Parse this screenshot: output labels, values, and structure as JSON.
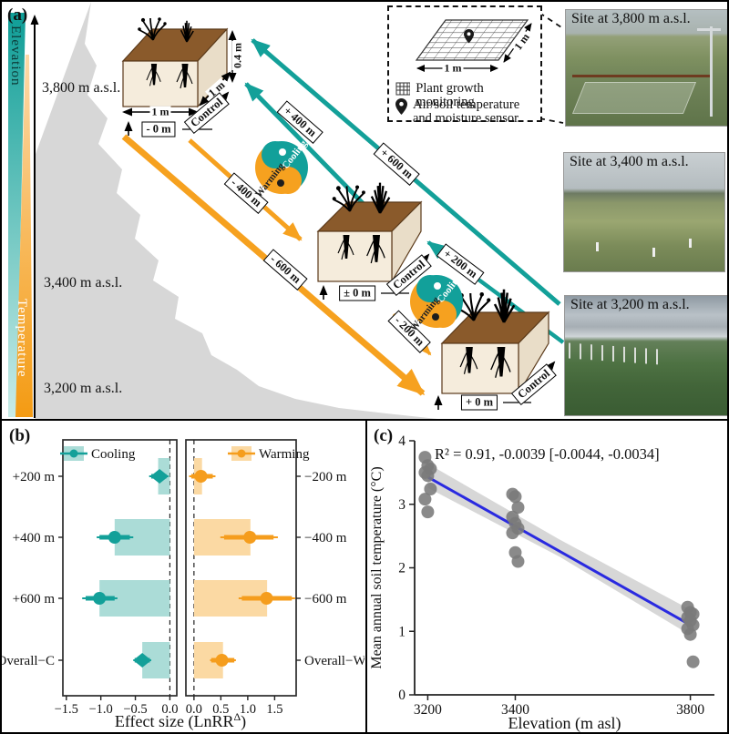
{
  "colors": {
    "teal": "#13a099",
    "teal_light": "#abdcd7",
    "orange": "#f6a11f",
    "orange_light": "#fbd9a3",
    "blue_line": "#2a2ae0",
    "gray_point": "#7a7a7a",
    "ci_band": "#c9c9c9",
    "mountain": "#d7d7d7",
    "soil_top": "#8a5a2b",
    "soil_face": "#f5ecdc"
  },
  "panels": {
    "a": "(a)",
    "b": "(b)",
    "c": "(c)"
  },
  "panel_a": {
    "elevation_bar_label": "Elevation",
    "temperature_bar_label": "Temperature",
    "elevation_labels": [
      "3,800 m a.s.l.",
      "3,400 m a.s.l.",
      "3,200 m a.s.l."
    ],
    "monolith_top": {
      "width_label": "1 m",
      "depth_label": "1 m",
      "height_label": "0.4 m",
      "offset_label": "- 0 m",
      "control_label": "Control"
    },
    "monolith_mid": {
      "offset_label": "± 0 m",
      "control_label": "Control"
    },
    "monolith_bottom": {
      "offset_label": "+ 0 m",
      "control_label": "Control"
    },
    "cooling_arrow_labels": {
      "plus200": "+ 200 m",
      "plus400": "+ 400 m",
      "plus600": "+ 600 m"
    },
    "warming_arrow_labels": {
      "minus200": "- 200 m",
      "minus400": "- 400 m",
      "minus600": "- 600 m"
    },
    "yinyang": {
      "cooling": "Cooling",
      "warming": "Warming"
    },
    "legend": {
      "quadrat_width_label": "1 m",
      "quadrat_depth_label": "1 m",
      "item1": "Plant growth monitoring",
      "item2": "Air/soil temperature and moisture sensor"
    },
    "photos": {
      "top": "Site at 3,800 m a.s.l.",
      "middle": "Site at 3,400 m a.s.l.",
      "bottom": "Site at 3,200 m a.s.l."
    }
  },
  "chart_data": [
    {
      "id": "effect-size-forest",
      "type": "bar",
      "xlabel_main": "Effect size (LnRR",
      "xlabel_sup": "Δ",
      "xlabel_end": ")",
      "panels": [
        {
          "name": "Cooling",
          "marker_color": "#13a099",
          "bar_fill": "#abdcd7",
          "xlim": [
            -1.55,
            0.1
          ],
          "xticks": [
            {
              "v": -1.5,
              "label": "−1.5"
            },
            {
              "v": -1.0,
              "label": "−1.0"
            },
            {
              "v": -0.5,
              "label": "−0.5"
            },
            {
              "v": 0.0,
              "label": "0.0"
            }
          ],
          "zero_dashed_line": true,
          "label_side": "left",
          "rows": [
            {
              "label": "+200 m",
              "bar": -0.17,
              "point": -0.15,
              "ci_thick": [
                -0.27,
                -0.05
              ],
              "ci_thin": [
                -0.3,
                -0.02
              ],
              "marker": "diamond"
            },
            {
              "label": "+400 m",
              "bar": -0.8,
              "point": -0.8,
              "ci_thick": [
                -1.02,
                -0.58
              ],
              "ci_thin": [
                -1.06,
                -0.53
              ],
              "marker": "circle"
            },
            {
              "label": "+600 m",
              "bar": -1.02,
              "point": -1.02,
              "ci_thick": [
                -1.22,
                -0.8
              ],
              "ci_thin": [
                -1.27,
                -0.76
              ],
              "marker": "circle"
            },
            {
              "label": "Overall−C",
              "bar": -0.4,
              "point": -0.4,
              "ci_thick": [
                -0.51,
                -0.29
              ],
              "ci_thin": [
                -0.53,
                -0.27
              ],
              "marker": "diamond"
            }
          ]
        },
        {
          "name": "Warming",
          "marker_color": "#f59d1d",
          "bar_fill": "#fbd9a3",
          "xlim": [
            -0.15,
            1.9
          ],
          "xticks": [
            {
              "v": 0.0,
              "label": "0.0"
            },
            {
              "v": 0.5,
              "label": "0.5"
            },
            {
              "v": 1.0,
              "label": "1.0"
            },
            {
              "v": 1.5,
              "label": "1.5"
            }
          ],
          "zero_dashed_line": true,
          "label_side": "right",
          "rows": [
            {
              "label": "−200 m",
              "bar": 0.15,
              "point": 0.13,
              "ci_thick": [
                -0.05,
                0.35
              ],
              "ci_thin": [
                -0.09,
                0.4
              ],
              "marker": "circle"
            },
            {
              "label": "−400 m",
              "bar": 1.05,
              "point": 1.04,
              "ci_thick": [
                0.56,
                1.48
              ],
              "ci_thin": [
                0.49,
                1.56
              ],
              "marker": "circle"
            },
            {
              "label": "−600 m",
              "bar": 1.36,
              "point": 1.35,
              "ci_thick": [
                0.89,
                1.82
              ],
              "ci_thin": [
                0.83,
                1.88
              ],
              "marker": "circle"
            },
            {
              "label": "Overall−W",
              "bar": 0.54,
              "point": 0.52,
              "ci_thick": [
                0.32,
                0.75
              ],
              "ci_thin": [
                0.3,
                0.78
              ],
              "marker": "circle"
            }
          ]
        }
      ]
    },
    {
      "id": "soil-temp-vs-elevation",
      "type": "scatter",
      "annotation": "R² = 0.91,  -0.0039 [-0.0044, -0.0034]",
      "xlabel": "Elevation (m asl)",
      "ylabel": "Mean annual soil temperature (°C)",
      "xlim": [
        3170,
        3855
      ],
      "ylim": [
        0,
        4
      ],
      "xticks": [
        {
          "v": 3200,
          "label": "3200"
        },
        {
          "v": 3400,
          "label": "3400"
        },
        {
          "v": 3800,
          "label": "3800"
        }
      ],
      "yticks": [
        {
          "v": 0,
          "label": "0"
        },
        {
          "v": 1,
          "label": "1"
        },
        {
          "v": 2,
          "label": "2"
        },
        {
          "v": 3,
          "label": "3"
        },
        {
          "v": 4,
          "label": "4"
        }
      ],
      "point_color": "#7a7a7a",
      "groups": [
        {
          "x": 3200,
          "y": [
            3.74,
            3.61,
            3.56,
            3.5,
            3.45,
            3.24,
            3.08,
            2.88
          ]
        },
        {
          "x": 3400,
          "y": [
            3.16,
            3.12,
            2.95,
            2.8,
            2.7,
            2.62,
            2.55,
            2.24,
            2.1
          ]
        },
        {
          "x": 3800,
          "y": [
            1.38,
            1.3,
            1.27,
            1.22,
            1.17,
            1.1,
            1.04,
            0.95,
            0.52
          ]
        }
      ],
      "regression": {
        "color": "#2a2ae0",
        "x": [
          3200,
          3800
        ],
        "y": [
          3.43,
          1.1
        ]
      },
      "ci_band": {
        "color": "#c9c9c9",
        "upper": [
          [
            3200,
            3.64
          ],
          [
            3500,
            2.45
          ],
          [
            3800,
            1.34
          ]
        ],
        "lower": [
          [
            3800,
            0.94
          ],
          [
            3500,
            2.18
          ],
          [
            3200,
            3.26
          ]
        ]
      }
    }
  ]
}
